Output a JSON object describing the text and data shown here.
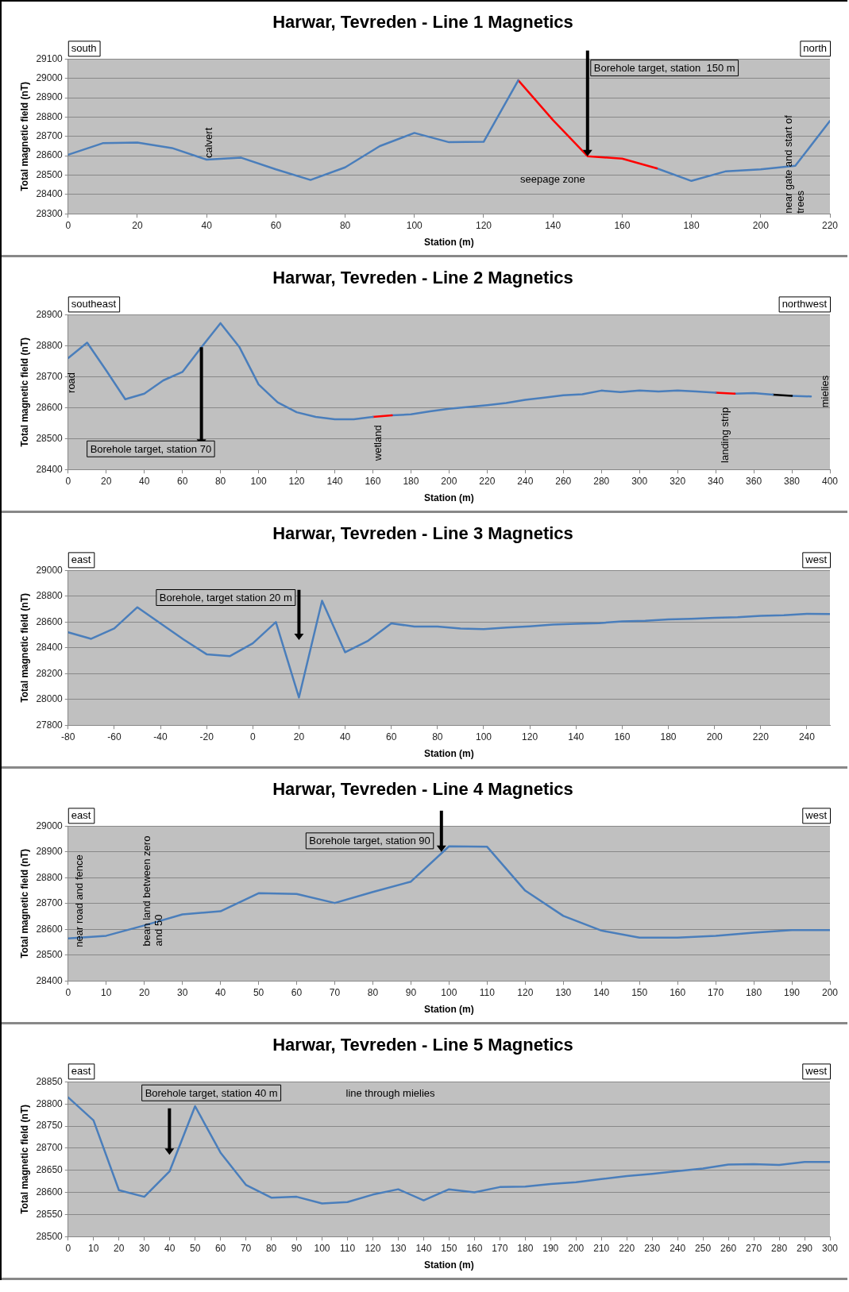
{
  "chart_data": [
    {
      "type": "line",
      "title": "Harwar, Tevreden - Line 1 Magnetics",
      "xlabel": "Station (m)",
      "ylabel": "Total magnetic field (nT)",
      "xlim": [
        0,
        220
      ],
      "xticks": [
        0,
        20,
        40,
        60,
        80,
        100,
        120,
        140,
        160,
        180,
        200,
        220
      ],
      "ylim": [
        28300,
        29100
      ],
      "yticks": [
        28300,
        28400,
        28500,
        28600,
        28700,
        28800,
        28900,
        29000,
        29100
      ],
      "grid": "y",
      "legend": false,
      "marker": "none",
      "line_style": "solid",
      "series": [
        {
          "color": "#4a7ebb",
          "x": [
            0,
            10,
            20,
            30,
            40,
            50,
            60,
            70,
            80,
            90,
            100,
            110,
            120,
            130
          ],
          "values": [
            28605,
            28665,
            28668,
            28640,
            28580,
            28590,
            28530,
            28475,
            28540,
            28650,
            28718,
            28670,
            28672,
            28990
          ]
        },
        {
          "color": "#ff0000",
          "x": [
            130,
            140,
            150,
            160,
            170
          ],
          "values": [
            28990,
            28785,
            28598,
            28585,
            28535
          ]
        },
        {
          "color": "#4a7ebb",
          "x": [
            170,
            180,
            190,
            200,
            210,
            220
          ],
          "values": [
            28535,
            28470,
            28520,
            28530,
            28548,
            28780
          ]
        }
      ],
      "annotations": [
        "south",
        "north",
        {
          "text": "calvert",
          "x": 40,
          "y": 28580
        },
        {
          "text": "Borehole target, station  150 m",
          "x": 150,
          "y": 28598
        },
        "seepage zone",
        {
          "text": "near gate and start of trees",
          "x": 210,
          "y": 28548
        }
      ]
    },
    {
      "type": "line",
      "title": "Harwar, Tevreden - Line 2 Magnetics",
      "xlabel": "Station (m)",
      "ylabel": "Total magnetic field (nT)",
      "xlim": [
        0,
        400
      ],
      "xticks": [
        0,
        20,
        40,
        60,
        80,
        100,
        120,
        140,
        160,
        180,
        200,
        220,
        240,
        260,
        280,
        300,
        320,
        340,
        360,
        380,
        400
      ],
      "ylim": [
        28400,
        28900
      ],
      "yticks": [
        28400,
        28500,
        28600,
        28700,
        28800,
        28900
      ],
      "grid": "y",
      "legend": false,
      "marker": "none",
      "line_style": "solid",
      "series": [
        {
          "color": "#4a7ebb",
          "x": [
            0,
            10,
            20,
            30,
            40,
            50,
            60,
            70,
            80,
            90,
            100,
            110,
            120,
            130,
            140,
            150,
            160
          ],
          "values": [
            28760,
            28810,
            28720,
            28627,
            28645,
            28688,
            28715,
            28795,
            28873,
            28795,
            28675,
            28617,
            28585,
            28570,
            28562,
            28562,
            28570
          ]
        },
        {
          "color": "#ff0000",
          "x": [
            160,
            170
          ],
          "values": [
            28570,
            28575
          ]
        },
        {
          "color": "#4a7ebb",
          "x": [
            170,
            180,
            190,
            200,
            210,
            220,
            230,
            240,
            250,
            260,
            270,
            280,
            290,
            300,
            310,
            320,
            330,
            340
          ],
          "values": [
            28575,
            28578,
            28588,
            28596,
            28602,
            28608,
            28615,
            28625,
            28632,
            28640,
            28643,
            28655,
            28650,
            28655,
            28652,
            28655,
            28652,
            28648
          ]
        },
        {
          "color": "#ff0000",
          "x": [
            340,
            350
          ],
          "values": [
            28648,
            28645
          ]
        },
        {
          "color": "#4a7ebb",
          "x": [
            350,
            360,
            370
          ],
          "values": [
            28645,
            28647,
            28642
          ]
        },
        {
          "color": "#000000",
          "x": [
            370,
            380
          ],
          "values": [
            28642,
            28638
          ]
        },
        {
          "color": "#4a7ebb",
          "x": [
            380,
            390
          ],
          "values": [
            28638,
            28636
          ]
        }
      ],
      "annotations": [
        "southeast",
        "northwest",
        {
          "text": "road",
          "x": 0,
          "y": 28760
        },
        {
          "text": "Borehole target, station 70",
          "x": 70,
          "y": 28790
        },
        {
          "text": "wetland",
          "x": 165,
          "y": 28572
        },
        {
          "text": "landing strip",
          "x": 345,
          "y": 28647
        },
        "mielies"
      ]
    },
    {
      "type": "line",
      "title": "Harwar, Tevreden - Line 3 Magnetics",
      "xlabel": "Station (m)",
      "ylabel": "Total magnetic field (nT)",
      "xlim": [
        -80,
        250
      ],
      "xticks": [
        -80,
        -60,
        -40,
        -20,
        0,
        20,
        40,
        60,
        80,
        100,
        120,
        140,
        160,
        180,
        200,
        220,
        240
      ],
      "ylim": [
        27800,
        29000
      ],
      "yticks": [
        27800,
        28000,
        28200,
        28400,
        28600,
        28800,
        29000
      ],
      "grid": "y",
      "legend": false,
      "marker": "none",
      "line_style": "solid",
      "series": [
        {
          "color": "#4a7ebb",
          "x": [
            -80,
            -70,
            -60,
            -50,
            -40,
            -30,
            -20,
            -10,
            0,
            10,
            20,
            30,
            40,
            50,
            60,
            70,
            80,
            90,
            100,
            110,
            120,
            130,
            140,
            150,
            160,
            170,
            180,
            190,
            200,
            210,
            220,
            230,
            240,
            250
          ],
          "values": [
            28520,
            28470,
            28550,
            28715,
            28590,
            28465,
            28350,
            28335,
            28435,
            28600,
            28015,
            28765,
            28365,
            28455,
            28590,
            28565,
            28565,
            28550,
            28545,
            28557,
            28567,
            28580,
            28587,
            28592,
            28605,
            28610,
            28620,
            28625,
            28633,
            28638,
            28648,
            28653,
            28663,
            28662
          ]
        }
      ],
      "annotations": [
        "east",
        "west",
        "Borehole, target station 20 m"
      ]
    },
    {
      "type": "line",
      "title": "Harwar, Tevreden - Line 4 Magnetics",
      "xlabel": "Station (m)",
      "ylabel": "Total magnetic field (nT)",
      "xlim": [
        0,
        200
      ],
      "xticks": [
        0,
        10,
        20,
        30,
        40,
        50,
        60,
        70,
        80,
        90,
        100,
        110,
        120,
        130,
        140,
        150,
        160,
        170,
        180,
        190,
        200
      ],
      "ylim": [
        28400,
        29000
      ],
      "yticks": [
        28400,
        28500,
        28600,
        28700,
        28800,
        28900,
        29000
      ],
      "grid": "y",
      "legend": false,
      "marker": "none",
      "line_style": "solid",
      "series": [
        {
          "color": "#4a7ebb",
          "x": [
            0,
            10,
            20,
            30,
            40,
            50,
            60,
            70,
            80,
            90,
            100,
            110,
            120,
            130,
            140,
            150,
            160,
            170,
            180,
            190,
            200
          ],
          "values": [
            28565,
            28575,
            28615,
            28658,
            28670,
            28740,
            28737,
            28702,
            28745,
            28785,
            28922,
            28920,
            28750,
            28652,
            28595,
            28568,
            28568,
            28575,
            28587,
            28597,
            28597
          ]
        }
      ],
      "annotations": [
        "east",
        "west",
        {
          "text": "near road and fence",
          "x": 3,
          "y": 28565
        },
        {
          "text": "bean land between zero and 50",
          "x": 22,
          "y": 28615
        },
        {
          "text": "Borehole target, station 90",
          "x": 98,
          "y": 28900
        }
      ]
    },
    {
      "type": "line",
      "title": "Harwar, Tevreden - Line 5 Magnetics",
      "xlabel": "Station (m)",
      "ylabel": "Total magnetic field (nT)",
      "xlim": [
        0,
        300
      ],
      "xticks": [
        0,
        10,
        20,
        30,
        40,
        50,
        60,
        70,
        80,
        90,
        100,
        110,
        120,
        130,
        140,
        150,
        160,
        170,
        180,
        190,
        200,
        210,
        220,
        230,
        240,
        250,
        260,
        270,
        280,
        290,
        300
      ],
      "ylim": [
        28500,
        28850
      ],
      "yticks": [
        28500,
        28550,
        28600,
        28650,
        28700,
        28750,
        28800,
        28850
      ],
      "grid": "y",
      "legend": false,
      "marker": "none",
      "line_style": "solid",
      "series": [
        {
          "color": "#4a7ebb",
          "x": [
            0,
            10,
            20,
            30,
            40,
            50,
            60,
            70,
            80,
            90,
            100,
            110,
            120,
            130,
            140,
            150,
            160,
            170,
            180,
            190,
            200,
            210,
            220,
            230,
            240,
            250,
            260,
            270,
            280,
            290,
            300
          ],
          "values": [
            28815,
            28763,
            28605,
            28590,
            28648,
            28795,
            28690,
            28617,
            28588,
            28590,
            28575,
            28578,
            28595,
            28607,
            28582,
            28607,
            28600,
            28612,
            28613,
            28619,
            28623,
            28630,
            28637,
            28642,
            28648,
            28654,
            28663,
            28664,
            28662,
            28669,
            28669
          ]
        }
      ],
      "annotations": [
        "east",
        "west",
        "Borehole target, station 40 m",
        "line through mielies"
      ]
    }
  ]
}
